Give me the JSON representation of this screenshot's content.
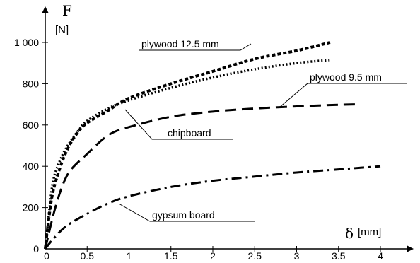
{
  "chart_data": {
    "type": "line",
    "xlabel_symbol": "δ",
    "xlabel_unit": "[mm]",
    "ylabel_symbol": "F",
    "ylabel_unit": "[N]",
    "xlim": [
      0,
      4.3
    ],
    "ylim": [
      0,
      1090
    ],
    "x_ticks": [
      {
        "value": 0,
        "label": "0"
      },
      {
        "value": 0.5,
        "label": "0.5"
      },
      {
        "value": 1,
        "label": "1"
      },
      {
        "value": 1.5,
        "label": "1.5"
      },
      {
        "value": 2,
        "label": "2"
      },
      {
        "value": 2.5,
        "label": "2.5"
      },
      {
        "value": 3,
        "label": "3"
      },
      {
        "value": 3.5,
        "label": "3.5"
      },
      {
        "value": 4,
        "label": "4"
      }
    ],
    "y_ticks": [
      {
        "value": 0,
        "label": "0"
      },
      {
        "value": 200,
        "label": "200"
      },
      {
        "value": 400,
        "label": "400"
      },
      {
        "value": 600,
        "label": "600"
      },
      {
        "value": 800,
        "label": "800"
      },
      {
        "value": 1000,
        "label": "1 000"
      }
    ],
    "grid": false,
    "series": [
      {
        "name": "plywood 12.5 mm",
        "style": "short-dash-thick",
        "x": [
          0,
          0.05,
          0.1,
          0.2,
          0.3,
          0.4,
          0.5,
          0.75,
          1.0,
          1.5,
          2.0,
          2.5,
          3.0,
          3.4
        ],
        "y": [
          0,
          170,
          290,
          420,
          510,
          570,
          610,
          670,
          730,
          800,
          860,
          920,
          960,
          1000
        ]
      },
      {
        "name": "plywood 9.5 mm",
        "style": "dotted",
        "x": [
          0,
          0.05,
          0.1,
          0.2,
          0.3,
          0.4,
          0.5,
          0.75,
          1.0,
          1.5,
          2.0,
          2.5,
          3.0,
          3.4
        ],
        "y": [
          0,
          190,
          340,
          450,
          520,
          575,
          620,
          680,
          720,
          780,
          830,
          870,
          900,
          915
        ]
      },
      {
        "name": "chipboard",
        "style": "long-dash",
        "x": [
          0,
          0.1,
          0.2,
          0.3,
          0.5,
          0.75,
          1.0,
          1.5,
          2.0,
          2.5,
          3.0,
          3.5,
          3.75
        ],
        "y": [
          0,
          170,
          300,
          380,
          460,
          550,
          590,
          640,
          665,
          680,
          690,
          698,
          700
        ]
      },
      {
        "name": "gypsum board",
        "style": "dash-dot",
        "x": [
          0,
          0.1,
          0.25,
          0.5,
          0.75,
          1.0,
          1.5,
          2.0,
          2.5,
          3.0,
          3.5,
          4.0
        ],
        "y": [
          0,
          50,
          110,
          170,
          220,
          255,
          300,
          330,
          350,
          370,
          385,
          400
        ]
      }
    ],
    "annotations": [
      {
        "text": "plywood 12.5 mm",
        "series": "plywood 12.5 mm"
      },
      {
        "text": "plywood 9.5 mm",
        "series": "plywood 9.5 mm"
      },
      {
        "text": "chipboard",
        "series": "chipboard"
      },
      {
        "text": "gypsum board",
        "series": "gypsum board"
      }
    ]
  }
}
